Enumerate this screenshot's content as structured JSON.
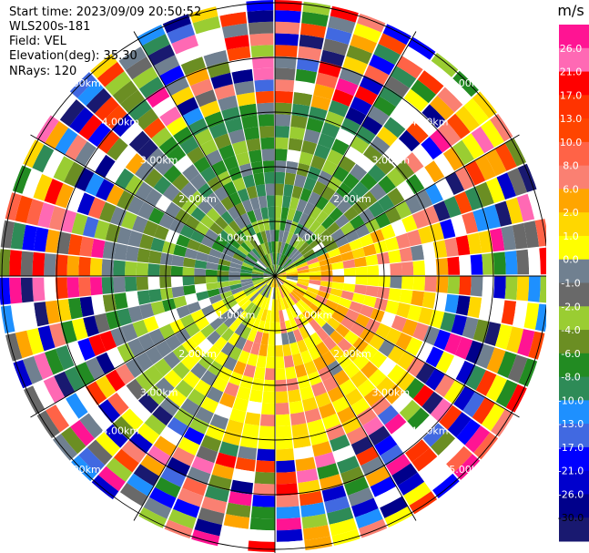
{
  "info": {
    "start_time": "Start time: 2023/09/09 20:50:52",
    "instrument": "WLS200s-181",
    "field": "Field: VEL",
    "elevation": "Elevation(deg): 35.30",
    "nrays": "NRays: 120"
  },
  "chart_data": {
    "type": "heatmap",
    "projection": "polar (PPI)",
    "field": "VEL",
    "units": "m/s",
    "n_rays": 120,
    "range_rings_km": [
      1.0,
      2.0,
      3.0,
      4.0,
      5.0
    ],
    "ring_labels": [
      "1.00km",
      "2.00km",
      "3.00km",
      "4.00km",
      "5.00km"
    ],
    "colorbar": {
      "title": "m/s",
      "ticks": [
        "26.0",
        "21.0",
        "17.0",
        "13.0",
        "10.0",
        "8.0",
        "6.0",
        "2.0",
        "1.0",
        "0.0",
        "-1.0",
        "-2.0",
        "-4.0",
        "-6.0",
        "-8.0",
        "-10.0",
        "-13.0",
        "-17.0",
        "-21.0",
        "-26.0",
        "-30.0"
      ],
      "colors": [
        "#ff1493",
        "#ff69b4",
        "#ff0000",
        "#ff3300",
        "#ff4500",
        "#ff6347",
        "#fa8072",
        "#ffa500",
        "#ffd700",
        "#ffff00",
        "#708090",
        "#696969",
        "#9acd32",
        "#6b8e23",
        "#228b22",
        "#2e8b57",
        "#1e90ff",
        "#4169e1",
        "#0000ff",
        "#0000cd",
        "#00008b",
        "#191970"
      ]
    }
  }
}
